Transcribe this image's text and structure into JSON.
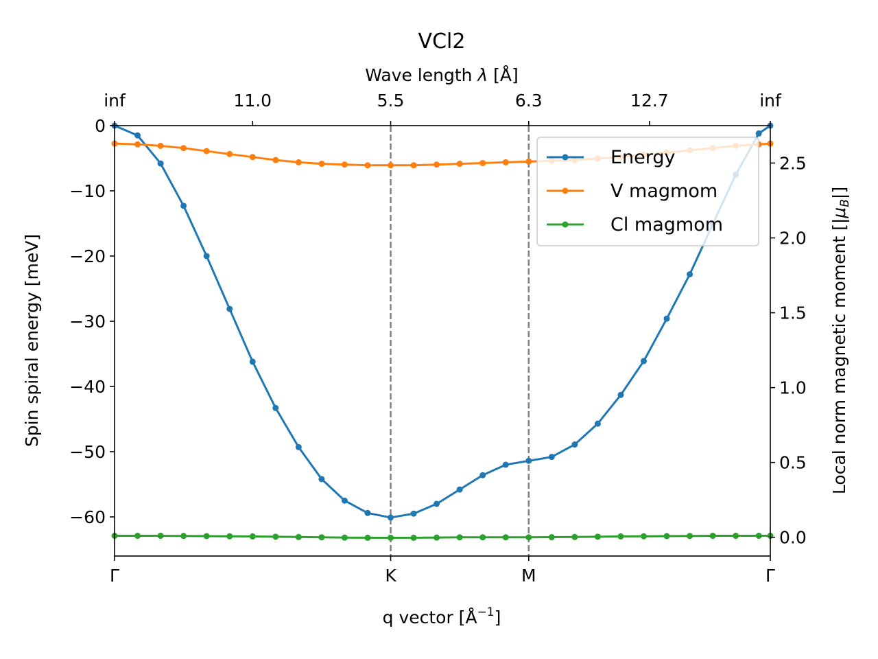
{
  "chart_data": {
    "type": "line",
    "title": "VCl2",
    "xlabel": "q vector [Å$^{-1}$]",
    "xlabel_main": "q vector [Å",
    "xlabel_sup": "−1",
    "xlabel_end": "]",
    "top_xlabel_pre": "Wave length ",
    "top_xlabel_sym": "λ",
    "top_xlabel_post": " [Å]",
    "ylabel": "Spin spiral energy [meV]",
    "y2label_pre": "Local norm magnetic moment [|",
    "y2label_sym": "μ",
    "y2label_sub": "B",
    "y2label_post": "|]",
    "xlim": [
      0,
      57
    ],
    "ylim": [
      -66,
      0
    ],
    "y2lim": [
      -0.125,
      2.75
    ],
    "x_ticks": [
      {
        "value": 0,
        "label": "Γ"
      },
      {
        "value": 24,
        "label": "K"
      },
      {
        "value": 36,
        "label": "M"
      },
      {
        "value": 57,
        "label": "Γ"
      }
    ],
    "top_ticks": [
      {
        "value": 0,
        "label": "inf"
      },
      {
        "value": 12,
        "label": "11.0"
      },
      {
        "value": 24,
        "label": "5.5"
      },
      {
        "value": 36,
        "label": "6.3"
      },
      {
        "value": 46.5,
        "label": "12.7"
      },
      {
        "value": 57,
        "label": "inf"
      }
    ],
    "y_ticks": [
      0,
      -10,
      -20,
      -30,
      -40,
      -50,
      -60
    ],
    "y2_ticks": [
      0.0,
      0.5,
      1.0,
      1.5,
      2.0,
      2.5
    ],
    "vlines": [
      24,
      36
    ],
    "colors": {
      "Energy": "#1f77b4",
      "V magmom": "#ff7f0e",
      "Cl magmom": "#2ca02c",
      "vline": "#808080"
    },
    "legend_loc": "upper right",
    "series": [
      {
        "name": "Energy",
        "axis": "left",
        "x": [
          0,
          2,
          4,
          6,
          8,
          10,
          12,
          14,
          16,
          18,
          20,
          22,
          24,
          26,
          28,
          30,
          32,
          34,
          36,
          38,
          40,
          42,
          44,
          46,
          48,
          50,
          52,
          54,
          56,
          57
        ],
        "values": [
          0,
          -1.5,
          -5.8,
          -12.3,
          -20,
          -28.1,
          -36.2,
          -43.3,
          -49.3,
          -54.2,
          -57.5,
          -59.4,
          -60.1,
          -59.5,
          -58,
          -55.8,
          -53.6,
          -52,
          -51.4,
          -50.8,
          -48.9,
          -45.7,
          -41.3,
          -36.1,
          -29.6,
          -22.8,
          -15.1,
          -7.5,
          -1.2,
          0
        ]
      },
      {
        "name": "V magmom",
        "axis": "right",
        "x": [
          0,
          2,
          4,
          6,
          8,
          10,
          12,
          14,
          16,
          18,
          20,
          22,
          24,
          26,
          28,
          30,
          32,
          34,
          36,
          38,
          40,
          42,
          44,
          46,
          48,
          50,
          52,
          54,
          56,
          57
        ],
        "values": [
          2.63,
          2.625,
          2.615,
          2.6,
          2.58,
          2.56,
          2.54,
          2.52,
          2.505,
          2.495,
          2.49,
          2.485,
          2.485,
          2.485,
          2.49,
          2.495,
          2.5,
          2.505,
          2.51,
          2.515,
          2.52,
          2.53,
          2.54,
          2.555,
          2.57,
          2.585,
          2.6,
          2.615,
          2.625,
          2.63
        ]
      },
      {
        "name": "Cl magmom",
        "axis": "right",
        "x": [
          0,
          2,
          4,
          6,
          8,
          10,
          12,
          14,
          16,
          18,
          20,
          22,
          24,
          26,
          28,
          30,
          32,
          34,
          36,
          38,
          40,
          42,
          44,
          46,
          48,
          50,
          52,
          54,
          56,
          57
        ],
        "values": [
          0.01,
          0.01,
          0.01,
          0.009,
          0.008,
          0.007,
          0.006,
          0.004,
          0.002,
          0,
          -0.002,
          -0.003,
          -0.003,
          -0.003,
          -0.002,
          0,
          0,
          0,
          0,
          0.001,
          0.002,
          0.004,
          0.006,
          0.007,
          0.008,
          0.009,
          0.01,
          0.01,
          0.01,
          0.01
        ]
      }
    ]
  }
}
